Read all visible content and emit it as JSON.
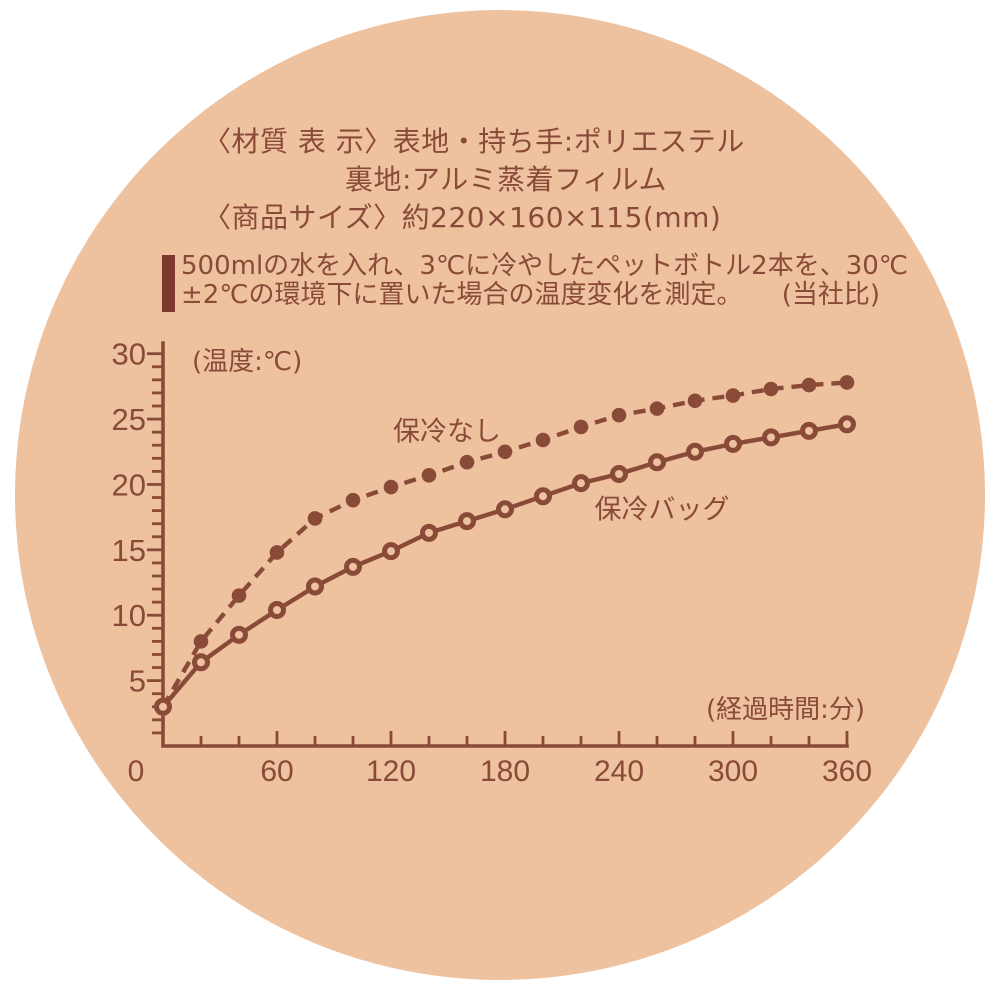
{
  "colors": {
    "page_bg": "#ffffff",
    "disc_bg": "#eec19f",
    "ink": "#8a4a38",
    "accent_bar": "#7a392c"
  },
  "spec": {
    "material_line1": "〈材質 表 示〉表地・持ち手:ポリエステル",
    "material_line2": "裏地:アルミ蒸着フィルム",
    "size_line": "〈商品サイズ〉約220×160×115(mm)"
  },
  "note": {
    "line1": "500mlの水を入れ、3℃に冷やしたペットボトル2本を、30℃",
    "line2": "±2℃の環境下に置いた場合の温度変化を測定。",
    "suffix": "(当社比)"
  },
  "chart_data": {
    "type": "line",
    "title": "",
    "xlabel": "(経過時間:分)",
    "ylabel": "(温度:℃)",
    "xlim": [
      0,
      360
    ],
    "ylim": [
      0,
      30.8
    ],
    "grid": false,
    "legend_position": "inline-labels",
    "x_tick_labels": [
      0,
      60,
      120,
      180,
      240,
      300,
      360
    ],
    "x_minor_step": 20,
    "y_tick_labels": [
      5,
      10,
      15,
      20,
      25,
      30
    ],
    "y_minor_step": 1,
    "x": [
      0,
      20,
      40,
      60,
      80,
      100,
      120,
      140,
      160,
      180,
      200,
      220,
      240,
      260,
      280,
      300,
      320,
      340,
      360
    ],
    "series": [
      {
        "name": "保冷なし",
        "line": "dashed",
        "marker": "filled-dot",
        "values": [
          3.0,
          8.0,
          11.5,
          14.8,
          17.4,
          18.8,
          19.8,
          20.7,
          21.7,
          22.5,
          23.4,
          24.4,
          25.3,
          25.8,
          26.4,
          26.8,
          27.3,
          27.6,
          27.8
        ]
      },
      {
        "name": "保冷バッグ",
        "line": "solid",
        "marker": "open-circle",
        "values": [
          3.0,
          6.4,
          8.5,
          10.4,
          12.2,
          13.7,
          14.9,
          16.3,
          17.2,
          18.1,
          19.1,
          20.1,
          20.8,
          21.7,
          22.5,
          23.1,
          23.6,
          24.1,
          24.6
        ]
      }
    ]
  }
}
